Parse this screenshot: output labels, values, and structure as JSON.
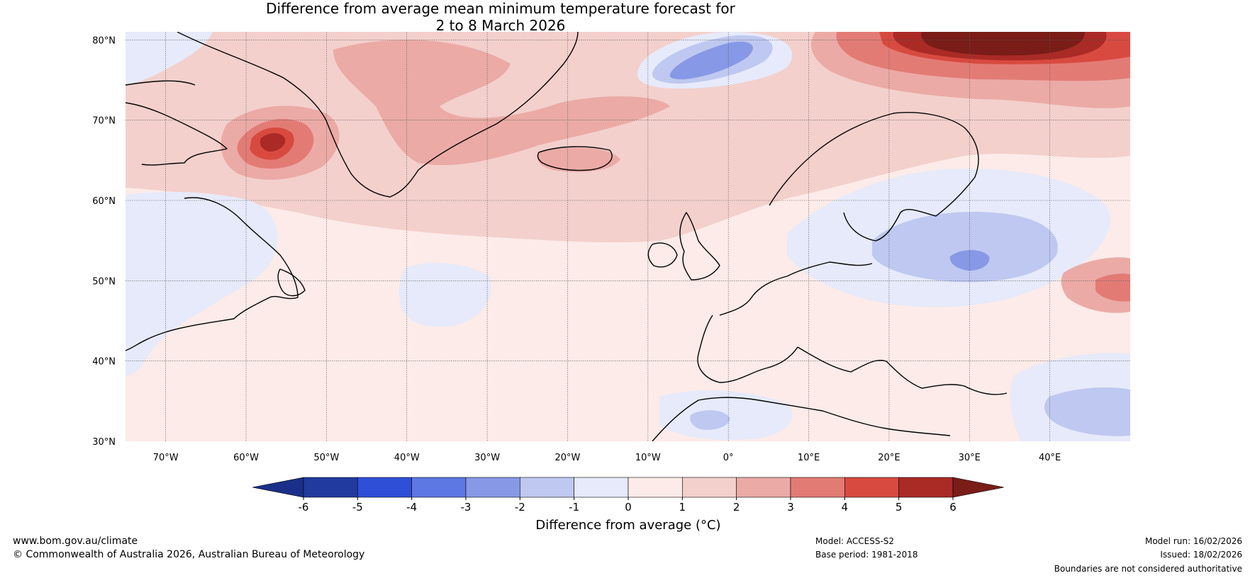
{
  "title": {
    "line1": "Difference from average mean minimum temperature forecast for",
    "line2": "2 to 8 March 2026"
  },
  "map": {
    "lat_labels": [
      "80°N",
      "70°N",
      "60°N",
      "50°N",
      "40°N",
      "30°N"
    ],
    "lon_labels": [
      "70°W",
      "60°W",
      "50°W",
      "40°W",
      "30°W",
      "20°W",
      "10°W",
      "0°",
      "10°E",
      "20°E",
      "30°E",
      "40°E"
    ],
    "lat_values": [
      80,
      70,
      60,
      50,
      40,
      30
    ],
    "lon_values": [
      -70,
      -60,
      -50,
      -40,
      -30,
      -20,
      -10,
      0,
      10,
      20,
      30,
      40
    ],
    "extent": {
      "lon_min": -75,
      "lon_max": 50,
      "lat_min": 30,
      "lat_max": 81
    }
  },
  "colorbar": {
    "ticks": [
      "-6",
      "-5",
      "-4",
      "-3",
      "-2",
      "-1",
      "0",
      "1",
      "2",
      "3",
      "4",
      "5",
      "6"
    ],
    "colors": [
      "#213a9f",
      "#2f4fd6",
      "#5e78e3",
      "#8798e6",
      "#bfc8f0",
      "#e6eafa",
      "#fcebe8",
      "#f3d0cc",
      "#ebaaa6",
      "#e37b75",
      "#d84a40",
      "#aa2a26"
    ],
    "under_color": "#1a2f88",
    "over_color": "#7a1c18",
    "label": "Difference from average (°C)"
  },
  "footer": {
    "website": "www.bom.gov.au/climate",
    "copyright": "© Commonwealth of Australia 2026, Australian Bureau of Meteorology",
    "model": "Model: ACCESS-S2",
    "base_period": "Base period: 1981-2018",
    "model_run": "Model run: 16/02/2026",
    "issued": "Issued: 18/02/2026",
    "disclaimer": "Boundaries are not considered authoritative"
  }
}
